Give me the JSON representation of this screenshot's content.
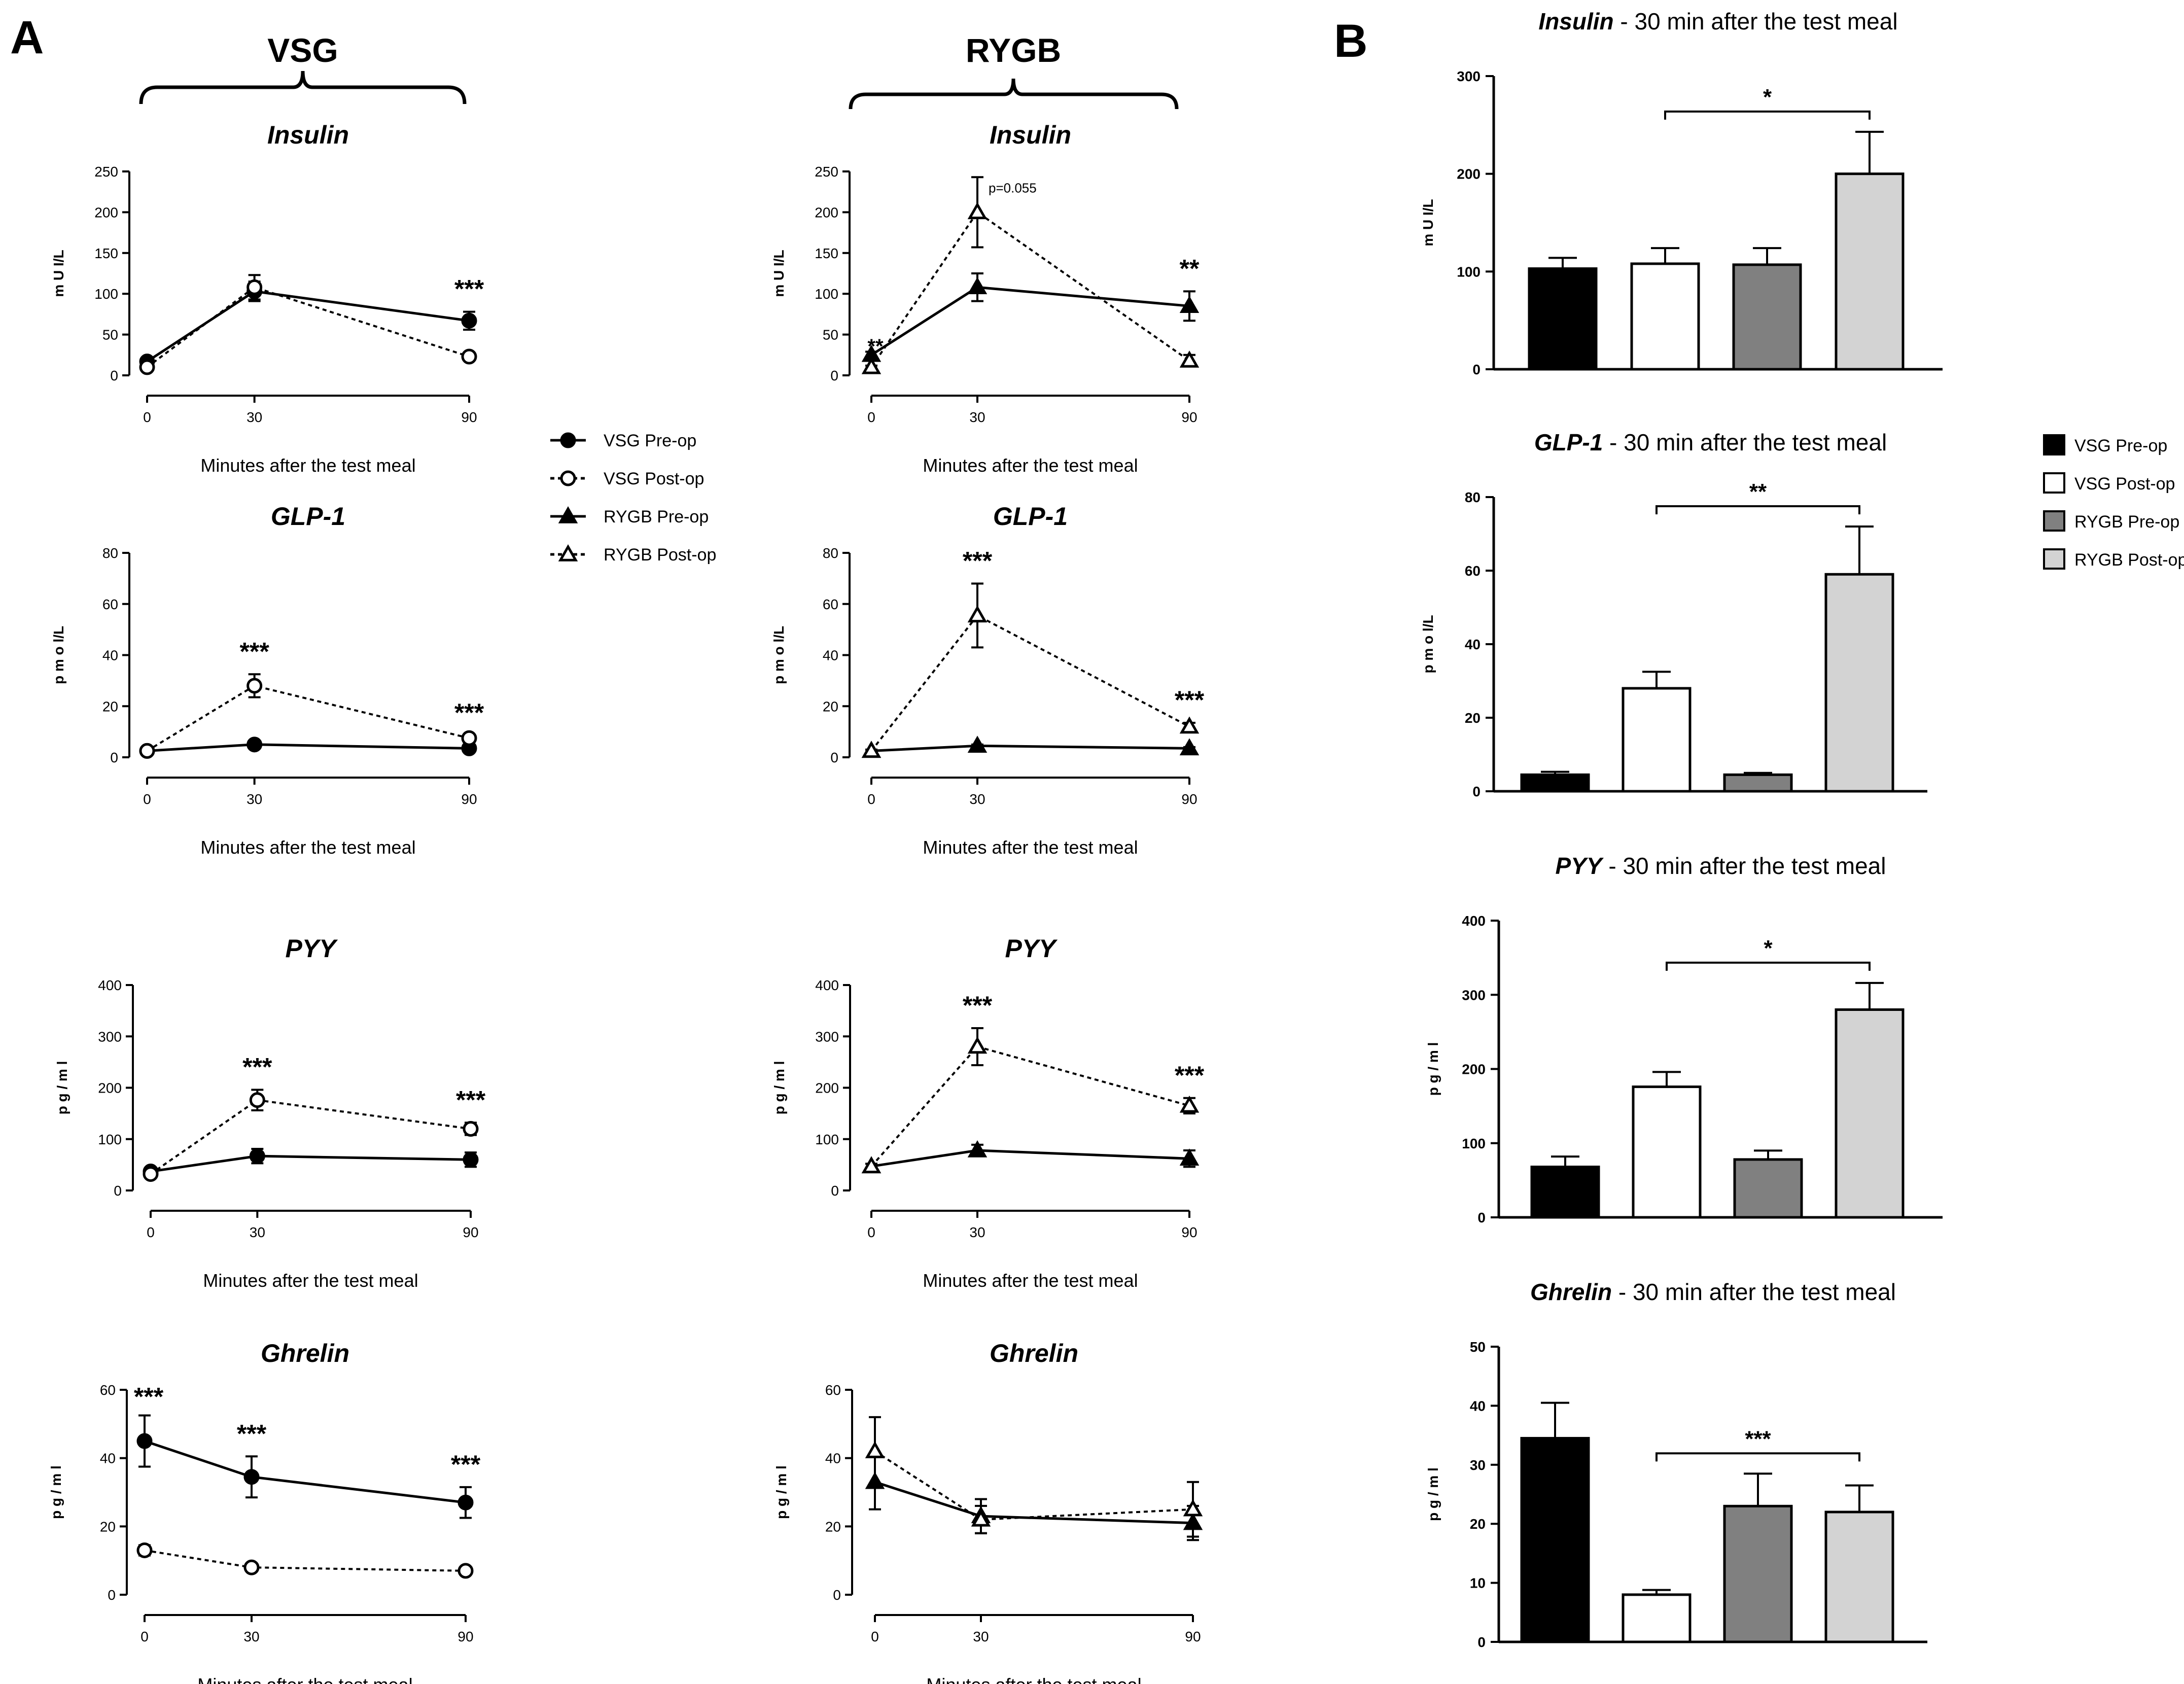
{
  "figure": {
    "panel_a_letter": "A",
    "panel_b_letter": "B",
    "group_vsg": "VSG",
    "group_rygb": "RYGB"
  },
  "colors": {
    "vsg_pre": "#000000",
    "vsg_post": "#ffffff",
    "rygb_pre": "#808080",
    "rygb_post": "#d3d3d3",
    "axis": "#000000"
  },
  "legend_a": {
    "items": [
      {
        "label": "VSG Pre-op",
        "marker": "circle-filled",
        "dash": false
      },
      {
        "label": "VSG Post-op",
        "marker": "circle-open",
        "dash": true
      },
      {
        "label": "RYGB Pre-op",
        "marker": "triangle-filled",
        "dash": false
      },
      {
        "label": "RYGB Post-op",
        "marker": "triangle-open",
        "dash": true
      }
    ]
  },
  "legend_b": {
    "items": [
      {
        "label": "VSG Pre-op",
        "color": "#000000"
      },
      {
        "label": "VSG Post-op",
        "color": "#ffffff"
      },
      {
        "label": "RYGB Pre-op",
        "color": "#808080"
      },
      {
        "label": "RYGB Post-op",
        "color": "#d3d3d3"
      }
    ]
  },
  "chart_data": [
    {
      "id": "vsg-insulin",
      "type": "line",
      "title": "Insulin",
      "xlabel": "Minutes after the test meal",
      "ylabel": "m U I/L",
      "x": [
        0,
        30,
        90
      ],
      "x_ticks": [
        "0",
        "30",
        "90"
      ],
      "ylim": [
        0,
        250
      ],
      "y_ticks": [
        "0",
        "50",
        "100",
        "150",
        "200",
        "250"
      ],
      "series": [
        {
          "name": "VSG Pre-op",
          "marker": "circle-filled",
          "dash": false,
          "values": [
            17,
            103,
            67
          ],
          "errors": [
            4,
            12,
            11
          ]
        },
        {
          "name": "VSG Post-op",
          "marker": "circle-open",
          "dash": true,
          "values": [
            10,
            108,
            23
          ],
          "errors": [
            2,
            15,
            3
          ]
        }
      ],
      "annotations": [
        {
          "x": 90,
          "text": "***"
        }
      ]
    },
    {
      "id": "rygb-insulin",
      "type": "line",
      "title": "Insulin",
      "xlabel": "Minutes after the test meal",
      "ylabel": "m U I/L",
      "x": [
        0,
        30,
        90
      ],
      "x_ticks": [
        "0",
        "30",
        "90"
      ],
      "ylim": [
        0,
        250
      ],
      "y_ticks": [
        "0",
        "50",
        "100",
        "150",
        "200",
        "250"
      ],
      "series": [
        {
          "name": "RYGB Pre-op",
          "marker": "triangle-filled",
          "dash": false,
          "values": [
            25,
            108,
            85
          ],
          "errors": [
            4,
            17,
            18
          ]
        },
        {
          "name": "RYGB Post-op",
          "marker": "triangle-open",
          "dash": true,
          "values": [
            10,
            200,
            18
          ],
          "errors": [
            2,
            43,
            7
          ]
        }
      ],
      "annotations": [
        {
          "x": 0,
          "text": "**"
        },
        {
          "x": 30,
          "text": "p=0.055"
        },
        {
          "x": 90,
          "text": "**"
        }
      ]
    },
    {
      "id": "vsg-glp1",
      "type": "line",
      "title": "GLP-1",
      "xlabel": "Minutes after the test meal",
      "ylabel": "p m o l/L",
      "x": [
        0,
        30,
        90
      ],
      "x_ticks": [
        "0",
        "30",
        "90"
      ],
      "ylim": [
        0,
        80
      ],
      "y_ticks": [
        "0",
        "20",
        "40",
        "60",
        "80"
      ],
      "series": [
        {
          "name": "VSG Pre-op",
          "marker": "circle-filled",
          "dash": false,
          "values": [
            2.5,
            5,
            3.5
          ],
          "errors": [
            0.5,
            0.5,
            0.5
          ]
        },
        {
          "name": "VSG Post-op",
          "marker": "circle-open",
          "dash": true,
          "values": [
            2.5,
            28,
            7.5
          ],
          "errors": [
            0.5,
            4.5,
            1
          ]
        }
      ],
      "annotations": [
        {
          "x": 30,
          "text": "***"
        },
        {
          "x": 90,
          "text": "***"
        }
      ]
    },
    {
      "id": "rygb-glp1",
      "type": "line",
      "title": "GLP-1",
      "xlabel": "Minutes after the test meal",
      "ylabel": "p m o l/L",
      "x": [
        0,
        30,
        90
      ],
      "x_ticks": [
        "0",
        "30",
        "90"
      ],
      "ylim": [
        0,
        80
      ],
      "y_ticks": [
        "0",
        "20",
        "40",
        "60",
        "80"
      ],
      "series": [
        {
          "name": "RYGB Pre-op",
          "marker": "triangle-filled",
          "dash": false,
          "values": [
            2.5,
            4.5,
            3.5
          ],
          "errors": [
            0.5,
            0.5,
            0.5
          ]
        },
        {
          "name": "RYGB Post-op",
          "marker": "triangle-open",
          "dash": true,
          "values": [
            2.5,
            55.5,
            12
          ],
          "errors": [
            0.5,
            12.5,
            1.5
          ]
        }
      ],
      "annotations": [
        {
          "x": 30,
          "text": "***"
        },
        {
          "x": 90,
          "text": "***"
        }
      ]
    },
    {
      "id": "vsg-pyy",
      "type": "line",
      "title": "PYY",
      "xlabel": "Minutes after the test meal",
      "ylabel": "p g / m l",
      "x": [
        0,
        30,
        90
      ],
      "x_ticks": [
        "0",
        "30",
        "90"
      ],
      "ylim": [
        0,
        400
      ],
      "y_ticks": [
        "0",
        "100",
        "200",
        "300",
        "400"
      ],
      "series": [
        {
          "name": "VSG Pre-op",
          "marker": "circle-filled",
          "dash": false,
          "values": [
            37,
            67,
            60
          ],
          "errors": [
            4,
            14,
            14
          ]
        },
        {
          "name": "VSG Post-op",
          "marker": "circle-open",
          "dash": true,
          "values": [
            32,
            176,
            120
          ],
          "errors": [
            4,
            20,
            12
          ]
        }
      ],
      "annotations": [
        {
          "x": 30,
          "text": "***"
        },
        {
          "x": 90,
          "text": "***"
        }
      ]
    },
    {
      "id": "rygb-pyy",
      "type": "line",
      "title": "PYY",
      "xlabel": "Minutes after the test meal",
      "ylabel": "p g / m l",
      "x": [
        0,
        30,
        90
      ],
      "x_ticks": [
        "0",
        "30",
        "90"
      ],
      "ylim": [
        0,
        400
      ],
      "y_ticks": [
        "0",
        "100",
        "200",
        "300",
        "400"
      ],
      "series": [
        {
          "name": "RYGB Pre-op",
          "marker": "triangle-filled",
          "dash": false,
          "values": [
            47,
            78,
            62
          ],
          "errors": [
            5,
            11,
            16
          ]
        },
        {
          "name": "RYGB Post-op",
          "marker": "triangle-open",
          "dash": true,
          "values": [
            47,
            280,
            165
          ],
          "errors": [
            5,
            36,
            15
          ]
        }
      ],
      "annotations": [
        {
          "x": 30,
          "text": "***"
        },
        {
          "x": 90,
          "text": "***"
        }
      ]
    },
    {
      "id": "vsg-ghrelin",
      "type": "line",
      "title": "Ghrelin",
      "xlabel": "Minutes after the test meal",
      "ylabel": "p g / m l",
      "x": [
        0,
        30,
        90
      ],
      "x_ticks": [
        "0",
        "30",
        "90"
      ],
      "ylim": [
        0,
        60
      ],
      "y_ticks": [
        "0",
        "20",
        "40",
        "60"
      ],
      "series": [
        {
          "name": "VSG Pre-op",
          "marker": "circle-filled",
          "dash": false,
          "values": [
            45,
            34.5,
            27
          ],
          "errors": [
            7.5,
            6,
            4.5
          ]
        },
        {
          "name": "VSG Post-op",
          "marker": "circle-open",
          "dash": true,
          "values": [
            13,
            8,
            7
          ],
          "errors": [
            1.5,
            0.5,
            0.5
          ]
        }
      ],
      "annotations": [
        {
          "x": 0,
          "text": "***"
        },
        {
          "x": 30,
          "text": "***"
        },
        {
          "x": 90,
          "text": "***"
        }
      ]
    },
    {
      "id": "rygb-ghrelin",
      "type": "line",
      "title": "Ghrelin",
      "xlabel": "Minutes after the test meal",
      "ylabel": "p g / m l",
      "x": [
        0,
        30,
        90
      ],
      "x_ticks": [
        "0",
        "30",
        "90"
      ],
      "ylim": [
        0,
        60
      ],
      "y_ticks": [
        "0",
        "20",
        "40",
        "60"
      ],
      "series": [
        {
          "name": "RYGB Pre-op",
          "marker": "triangle-filled",
          "dash": false,
          "values": [
            33,
            23,
            21
          ],
          "errors": [
            8,
            5,
            5
          ]
        },
        {
          "name": "RYGB Post-op",
          "marker": "triangle-open",
          "dash": true,
          "values": [
            42,
            22,
            25
          ],
          "errors": [
            10,
            4,
            8
          ]
        }
      ],
      "annotations": []
    },
    {
      "id": "bar-insulin",
      "type": "bar",
      "title": "Insulin",
      "subtitle": " - 30 min after the test meal",
      "ylabel": "m U I/L",
      "categories": [
        "VSG Pre-op",
        "VSG Post-op",
        "RYGB Pre-op",
        "RYGB Post-op"
      ],
      "values": [
        103,
        108,
        107,
        200
      ],
      "errors": [
        11,
        16,
        17,
        43
      ],
      "ylim": [
        0,
        300
      ],
      "y_ticks": [
        "0",
        "100",
        "200",
        "300"
      ],
      "significance": {
        "from": 1,
        "to": 3,
        "text": "*"
      }
    },
    {
      "id": "bar-glp1",
      "type": "bar",
      "title": "GLP-1",
      "subtitle": " - 30 min after the test meal",
      "ylabel": "p m o l/L",
      "categories": [
        "VSG Pre-op",
        "VSG Post-op",
        "RYGB Pre-op",
        "RYGB Post-op"
      ],
      "values": [
        4.5,
        28,
        4.5,
        59
      ],
      "errors": [
        0.8,
        4.5,
        0.5,
        13
      ],
      "ylim": [
        0,
        80
      ],
      "y_ticks": [
        "0",
        "20",
        "40",
        "60",
        "80"
      ],
      "significance": {
        "from": 1,
        "to": 3,
        "text": "**"
      }
    },
    {
      "id": "bar-pyy",
      "type": "bar",
      "title": "PYY",
      "subtitle": " - 30 min after the test meal",
      "ylabel": "p g / m l",
      "categories": [
        "VSG Pre-op",
        "VSG Post-op",
        "RYGB Pre-op",
        "RYGB Post-op"
      ],
      "values": [
        68,
        176,
        78,
        280
      ],
      "errors": [
        14,
        20,
        12,
        36
      ],
      "ylim": [
        0,
        400
      ],
      "y_ticks": [
        "0",
        "100",
        "200",
        "300",
        "400"
      ],
      "significance": {
        "from": 1,
        "to": 3,
        "text": "*"
      }
    },
    {
      "id": "bar-ghrelin",
      "type": "bar",
      "title": "Ghrelin",
      "subtitle": " - 30 min after the test meal",
      "ylabel": "p g / m l",
      "categories": [
        "VSG Pre-op",
        "VSG Post-op",
        "RYGB Pre-op",
        "RYGB Post-op"
      ],
      "values": [
        34.5,
        8,
        23,
        22
      ],
      "errors": [
        6,
        0.8,
        5.5,
        4.5
      ],
      "ylim": [
        0,
        50
      ],
      "y_ticks": [
        "0",
        "10",
        "20",
        "30",
        "40",
        "50"
      ],
      "significance": {
        "from": 1,
        "to": 3,
        "text": "***"
      }
    }
  ]
}
